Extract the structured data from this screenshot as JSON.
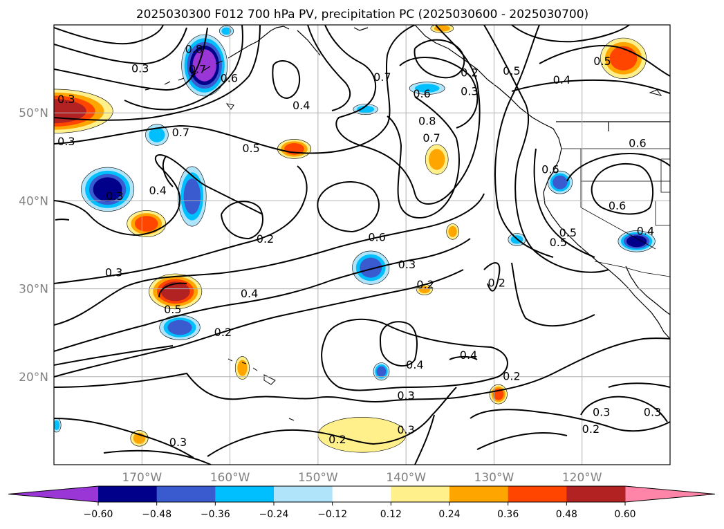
{
  "title": "2025030300 F012 700 hPa PV, precipitation PC (2025030600 - 2025030700)",
  "chart_data": {
    "type": "contour_map",
    "title": "2025030300 F012 700 hPa PV, precipitation PC (2025030600 - 2025030700)",
    "projection": "PlateCarree",
    "extent": {
      "lon": [
        -180,
        -110
      ],
      "lat": [
        10,
        60
      ]
    },
    "grid": true,
    "x_ticks": [
      -170,
      -160,
      -150,
      -140,
      -130,
      -120
    ],
    "x_tick_labels": [
      "170°W",
      "160°W",
      "150°W",
      "140°W",
      "130°W",
      "120°W"
    ],
    "y_ticks": [
      20,
      30,
      40,
      50
    ],
    "y_tick_labels": [
      "20°N",
      "30°N",
      "40°N",
      "50°N"
    ],
    "contour_field": "700 hPa PV",
    "contour_labels": [
      {
        "lon": -178.6,
        "lat": 51.6,
        "text": "0.3"
      },
      {
        "lon": -170.2,
        "lat": 55.1,
        "text": "0.3"
      },
      {
        "lon": -164.1,
        "lat": 57.3,
        "text": "0.8"
      },
      {
        "lon": -163.7,
        "lat": 55.0,
        "text": "0.7"
      },
      {
        "lon": -160.1,
        "lat": 54.0,
        "text": "0.6"
      },
      {
        "lon": -151.9,
        "lat": 50.9,
        "text": "0.4"
      },
      {
        "lon": -142.7,
        "lat": 54.1,
        "text": "0.7"
      },
      {
        "lon": -138.2,
        "lat": 52.2,
        "text": "0.6"
      },
      {
        "lon": -132.8,
        "lat": 54.6,
        "text": "0.2"
      },
      {
        "lon": -132.8,
        "lat": 52.5,
        "text": "0.3"
      },
      {
        "lon": -128.0,
        "lat": 54.8,
        "text": "0.5"
      },
      {
        "lon": -117.7,
        "lat": 55.9,
        "text": "0.5"
      },
      {
        "lon": -122.3,
        "lat": 53.8,
        "text": "0.4"
      },
      {
        "lon": -137.6,
        "lat": 49.1,
        "text": "0.8"
      },
      {
        "lon": -137.1,
        "lat": 47.2,
        "text": "0.7"
      },
      {
        "lon": -157.6,
        "lat": 46.0,
        "text": "0.5"
      },
      {
        "lon": -165.6,
        "lat": 47.8,
        "text": "0.7"
      },
      {
        "lon": -113.7,
        "lat": 46.6,
        "text": "0.6"
      },
      {
        "lon": -123.6,
        "lat": 43.6,
        "text": "0.6"
      },
      {
        "lon": -178.6,
        "lat": 46.8,
        "text": "0.3"
      },
      {
        "lon": -173.1,
        "lat": 40.6,
        "text": "0.3"
      },
      {
        "lon": -168.2,
        "lat": 41.2,
        "text": "0.4"
      },
      {
        "lon": -116.0,
        "lat": 39.5,
        "text": "0.6"
      },
      {
        "lon": -121.6,
        "lat": 36.4,
        "text": "0.5"
      },
      {
        "lon": -122.7,
        "lat": 35.3,
        "text": "0.5"
      },
      {
        "lon": -112.8,
        "lat": 36.6,
        "text": "0.4"
      },
      {
        "lon": -156.0,
        "lat": 35.7,
        "text": "0.2"
      },
      {
        "lon": -143.3,
        "lat": 35.9,
        "text": "0.6"
      },
      {
        "lon": -139.9,
        "lat": 32.8,
        "text": "0.3"
      },
      {
        "lon": -137.8,
        "lat": 30.5,
        "text": "0.2"
      },
      {
        "lon": -129.7,
        "lat": 30.7,
        "text": "0.2"
      },
      {
        "lon": -173.2,
        "lat": 31.9,
        "text": "0.3"
      },
      {
        "lon": -157.8,
        "lat": 29.5,
        "text": "0.4"
      },
      {
        "lon": -166.5,
        "lat": 27.7,
        "text": "0.5"
      },
      {
        "lon": -160.8,
        "lat": 25.1,
        "text": "0.2"
      },
      {
        "lon": -139.0,
        "lat": 21.4,
        "text": "0.4"
      },
      {
        "lon": -132.9,
        "lat": 22.5,
        "text": "0.4"
      },
      {
        "lon": -128.0,
        "lat": 20.1,
        "text": "0.2"
      },
      {
        "lon": -140.0,
        "lat": 17.9,
        "text": "0.3"
      },
      {
        "lon": -140.0,
        "lat": 14.0,
        "text": "0.3"
      },
      {
        "lon": -147.8,
        "lat": 12.9,
        "text": "0.2"
      },
      {
        "lon": -165.9,
        "lat": 12.6,
        "text": "0.3"
      },
      {
        "lon": -117.8,
        "lat": 16.0,
        "text": "0.3"
      },
      {
        "lon": -112.0,
        "lat": 16.0,
        "text": "0.3"
      },
      {
        "lon": -119.0,
        "lat": 14.1,
        "text": "0.2"
      }
    ],
    "colorbar": {
      "boundaries": [
        -0.6,
        -0.48,
        -0.36,
        -0.24,
        -0.12,
        0.12,
        0.24,
        0.36,
        0.48,
        0.6
      ],
      "tick_labels": [
        "−0.60",
        "−0.48",
        "−0.36",
        "−0.24",
        "−0.12",
        "0.12",
        "0.24",
        "0.36",
        "0.48",
        "0.60"
      ],
      "colors": [
        "#9a35d6",
        "#00008b",
        "#3a5bd0",
        "#00bfff",
        "#b0e4fb",
        "#ffffff",
        "#fff08c",
        "#ffa500",
        "#ff4500",
        "#b22222",
        "#ff85a8"
      ],
      "extend": "both"
    },
    "precip_anomalies": [
      {
        "lon": -180.0,
        "lat": 50.2,
        "rx": 6.7,
        "ry": 2.5,
        "value": 0.48
      },
      {
        "lon": -145.0,
        "lat": 13.4,
        "rx": 5.0,
        "ry": 2.0,
        "value": 0.12
      },
      {
        "lon": -173.9,
        "lat": 41.3,
        "rx": 3.0,
        "ry": 2.5,
        "value": -0.48
      },
      {
        "lon": -166.2,
        "lat": 29.7,
        "rx": 3.0,
        "ry": 2.0,
        "value": 0.48
      },
      {
        "lon": -165.7,
        "lat": 25.6,
        "rx": 2.3,
        "ry": 1.4,
        "value": -0.36
      },
      {
        "lon": -164.3,
        "lat": 40.5,
        "rx": 1.6,
        "ry": 3.4,
        "value": -0.36
      },
      {
        "lon": -162.9,
        "lat": 55.4,
        "rx": 2.6,
        "ry": 3.5,
        "value": -0.6
      },
      {
        "lon": -169.5,
        "lat": 37.4,
        "rx": 2.2,
        "ry": 1.5,
        "value": 0.36
      },
      {
        "lon": -144.0,
        "lat": 32.4,
        "rx": 2.1,
        "ry": 1.9,
        "value": -0.36
      },
      {
        "lon": -115.3,
        "lat": 56.2,
        "rx": 2.6,
        "ry": 2.3,
        "value": 0.36
      },
      {
        "lon": -113.8,
        "lat": 35.4,
        "rx": 2.1,
        "ry": 1.2,
        "value": -0.48
      },
      {
        "lon": -152.7,
        "lat": 45.9,
        "rx": 1.9,
        "ry": 1.1,
        "value": 0.36
      },
      {
        "lon": -136.5,
        "lat": 44.7,
        "rx": 1.3,
        "ry": 1.7,
        "value": 0.24
      },
      {
        "lon": -122.5,
        "lat": 42.1,
        "rx": 1.4,
        "ry": 1.3,
        "value": -0.36
      },
      {
        "lon": -168.3,
        "lat": 47.5,
        "rx": 1.3,
        "ry": 1.2,
        "value": -0.24
      },
      {
        "lon": -137.6,
        "lat": 52.8,
        "rx": 2.0,
        "ry": 0.7,
        "value": -0.24
      },
      {
        "lon": -144.6,
        "lat": 50.4,
        "rx": 1.4,
        "ry": 0.6,
        "value": -0.24
      },
      {
        "lon": -129.5,
        "lat": 18.0,
        "rx": 1.0,
        "ry": 1.1,
        "value": 0.36
      },
      {
        "lon": -142.8,
        "lat": 20.6,
        "rx": 0.9,
        "ry": 1.0,
        "value": -0.36
      },
      {
        "lon": -158.6,
        "lat": 21.0,
        "rx": 0.8,
        "ry": 1.3,
        "value": 0.24
      },
      {
        "lon": -170.3,
        "lat": 13.0,
        "rx": 1.0,
        "ry": 0.9,
        "value": 0.24
      },
      {
        "lon": -137.9,
        "lat": 29.9,
        "rx": 0.9,
        "ry": 0.6,
        "value": 0.24
      },
      {
        "lon": -134.7,
        "lat": 36.5,
        "rx": 0.7,
        "ry": 0.9,
        "value": 0.24
      },
      {
        "lon": -127.4,
        "lat": 35.6,
        "rx": 1.0,
        "ry": 0.7,
        "value": -0.24
      },
      {
        "lon": -135.9,
        "lat": 59.6,
        "rx": 1.3,
        "ry": 0.5,
        "value": 0.24
      },
      {
        "lon": -160.4,
        "lat": 59.3,
        "rx": 0.8,
        "ry": 0.6,
        "value": -0.24
      },
      {
        "lon": -179.7,
        "lat": 14.5,
        "rx": 0.5,
        "ry": 0.8,
        "value": -0.24
      }
    ]
  }
}
